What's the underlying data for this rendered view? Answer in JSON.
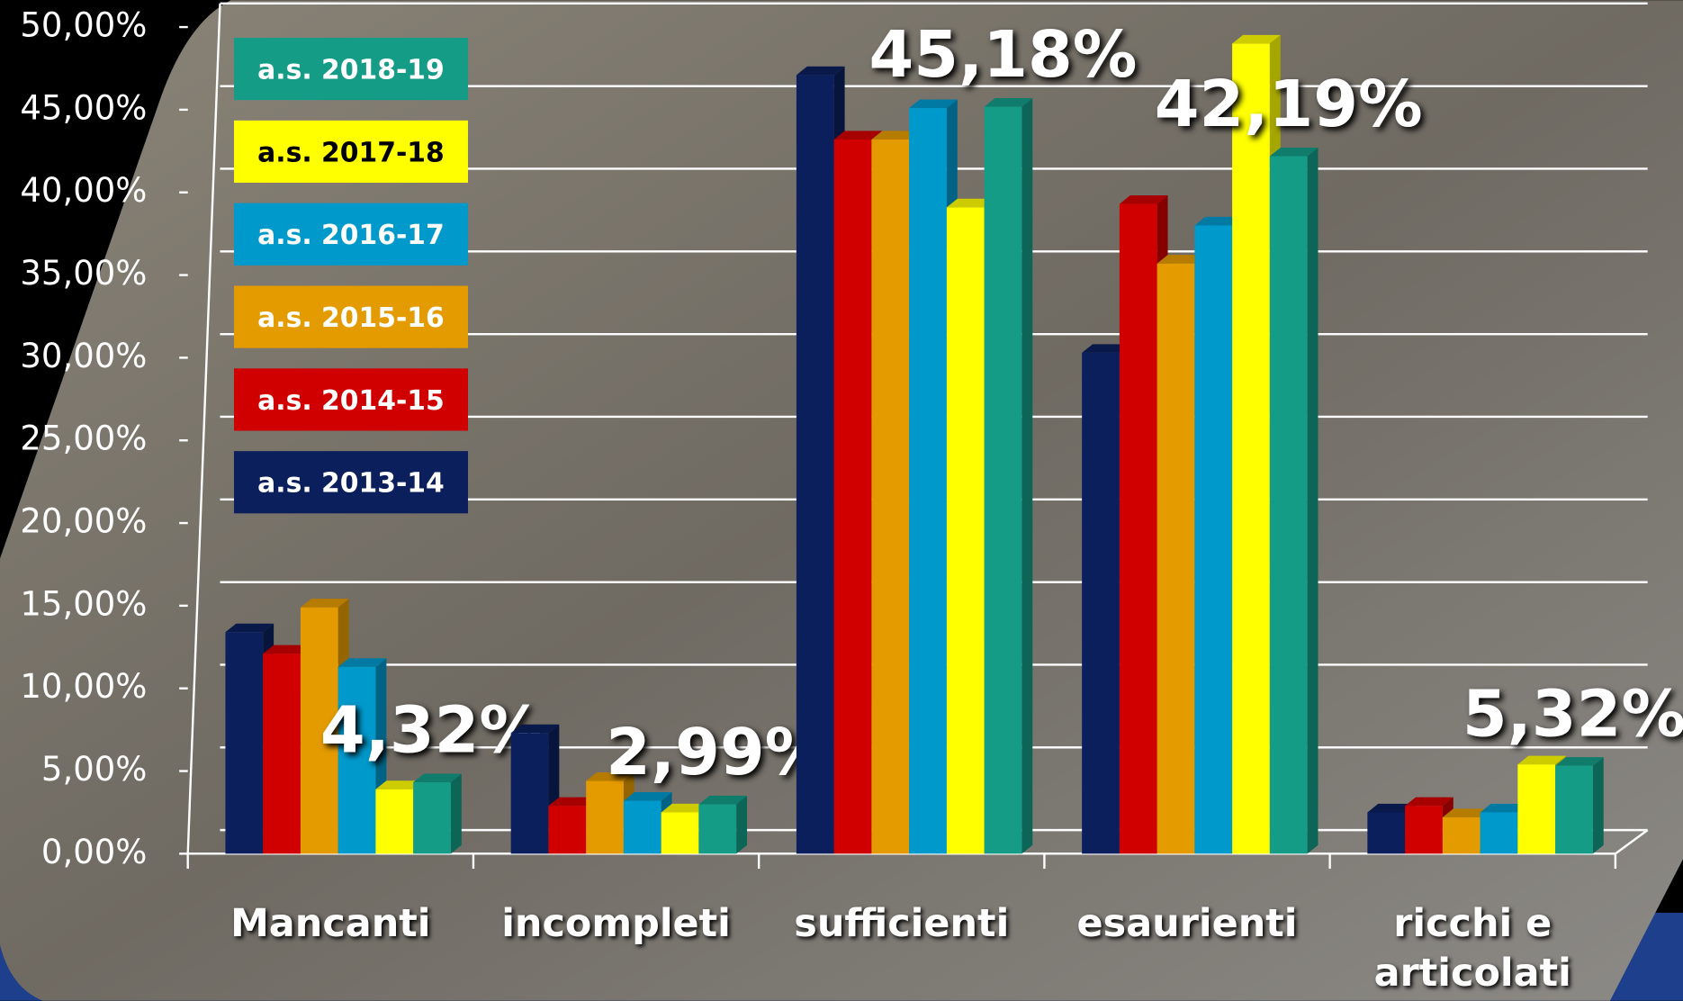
{
  "chart_data": {
    "type": "bar",
    "categories": [
      "Mancanti",
      "incompleti",
      "sufficienti",
      "esaurienti",
      "ricchi e articolati"
    ],
    "series": [
      {
        "name": "a.s. 2013-14",
        "color": "#0b1f5c",
        "values": [
          13.4,
          7.3,
          47.1,
          30.3,
          2.5
        ]
      },
      {
        "name": "a.s. 2014-15",
        "color": "#d00000",
        "values": [
          12.1,
          2.9,
          43.2,
          39.3,
          2.9
        ]
      },
      {
        "name": "a.s. 2015-16",
        "color": "#e49b00",
        "values": [
          14.9,
          4.4,
          43.2,
          35.7,
          2.2
        ]
      },
      {
        "name": "a.s. 2016-17",
        "color": "#0099cc",
        "values": [
          11.3,
          3.2,
          45.1,
          38.0,
          2.5
        ]
      },
      {
        "name": "a.s. 2017-18",
        "color": "#ffff00",
        "values": [
          3.9,
          2.5,
          39.1,
          49.0,
          5.4
        ]
      },
      {
        "name": "a.s. 2018-19",
        "color": "#149c87",
        "values": [
          4.32,
          2.99,
          45.18,
          42.19,
          5.32
        ],
        "value_labels": [
          "4,32%",
          "2,99%",
          "45,18%",
          "42,19%",
          "5,32%"
        ]
      }
    ],
    "ylim": [
      0,
      50
    ],
    "yticks": [
      {
        "value": 0,
        "label": "0,00%"
      },
      {
        "value": 5,
        "label": "5,00%"
      },
      {
        "value": 10,
        "label": "10,00%"
      },
      {
        "value": 15,
        "label": "15,00%"
      },
      {
        "value": 20,
        "label": "20,00%"
      },
      {
        "value": 25,
        "label": "25,00%"
      },
      {
        "value": 30,
        "label": "30,00%"
      },
      {
        "value": 35,
        "label": "35,00%"
      },
      {
        "value": 40,
        "label": "40,00%"
      },
      {
        "value": 45,
        "label": "45,00%"
      },
      {
        "value": 50,
        "label": "50,00%"
      }
    ],
    "grid": true
  }
}
